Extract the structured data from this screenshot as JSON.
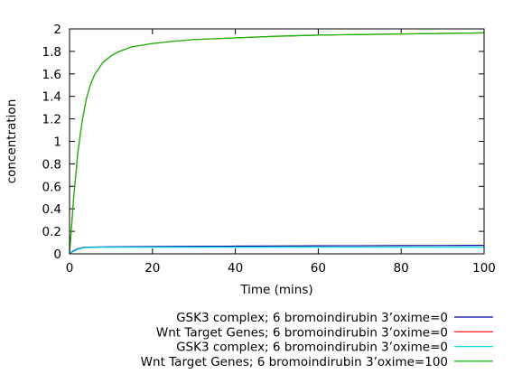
{
  "chart_data": {
    "type": "line",
    "xlabel": "Time (mins)",
    "ylabel": "concentration",
    "xlim": [
      0,
      100
    ],
    "ylim": [
      0,
      2
    ],
    "xticks": [
      "0",
      "20",
      "40",
      "60",
      "80",
      "100"
    ],
    "yticks": [
      "0",
      "0.2",
      "0.4",
      "0.6",
      "0.8",
      "1",
      "1.2",
      "1.4",
      "1.6",
      "1.8",
      "2"
    ],
    "grid": false,
    "legend_position": "bottom-right, outside plot",
    "series": [
      {
        "name": "GSK3 complex; 6 bromoindirubin 3’oxime=0",
        "color": "#0000a0",
        "x": [
          0,
          1,
          2,
          3,
          4,
          6,
          8,
          10,
          15,
          20,
          30,
          40,
          50,
          60,
          70,
          80,
          90,
          100
        ],
        "y": [
          0,
          0.028,
          0.045,
          0.054,
          0.058,
          0.06,
          0.061,
          0.062,
          0.063,
          0.064,
          0.066,
          0.068,
          0.07,
          0.071,
          0.072,
          0.073,
          0.074,
          0.075
        ]
      },
      {
        "name": "Wnt Target Genes; 6 bromoindirubin 3’oxime=0",
        "color": "#ff0000",
        "x": [
          0,
          1,
          2,
          3,
          4,
          5,
          6,
          8,
          10,
          12,
          15,
          20,
          25,
          30,
          40,
          50,
          60,
          70,
          80,
          90,
          100
        ],
        "y": [
          0,
          0.5,
          0.9,
          1.17,
          1.37,
          1.5,
          1.59,
          1.7,
          1.76,
          1.8,
          1.84,
          1.87,
          1.89,
          1.905,
          1.92,
          1.935,
          1.945,
          1.95,
          1.955,
          1.96,
          1.965
        ]
      },
      {
        "name": "GSK3 complex; 6 bromoindirubin 3’oxime=0",
        "color": "#00e5e5",
        "x": [
          0,
          1,
          2,
          3,
          4,
          6,
          8,
          10,
          15,
          20,
          30,
          40,
          50,
          60,
          70,
          80,
          90,
          100
        ],
        "y": [
          0,
          0.022,
          0.04,
          0.05,
          0.055,
          0.057,
          0.058,
          0.058,
          0.058,
          0.058,
          0.058,
          0.058,
          0.058,
          0.058,
          0.058,
          0.058,
          0.058,
          0.058
        ]
      },
      {
        "name": "Wnt Target Genes; 6 bromoindirubin 3’oxime=100",
        "color": "#00c000",
        "x": [
          0,
          1,
          2,
          3,
          4,
          5,
          6,
          8,
          10,
          12,
          15,
          20,
          25,
          30,
          40,
          50,
          60,
          70,
          80,
          90,
          100
        ],
        "y": [
          0,
          0.5,
          0.9,
          1.17,
          1.37,
          1.5,
          1.59,
          1.7,
          1.76,
          1.8,
          1.84,
          1.87,
          1.89,
          1.905,
          1.92,
          1.935,
          1.945,
          1.95,
          1.955,
          1.96,
          1.965
        ]
      }
    ]
  }
}
